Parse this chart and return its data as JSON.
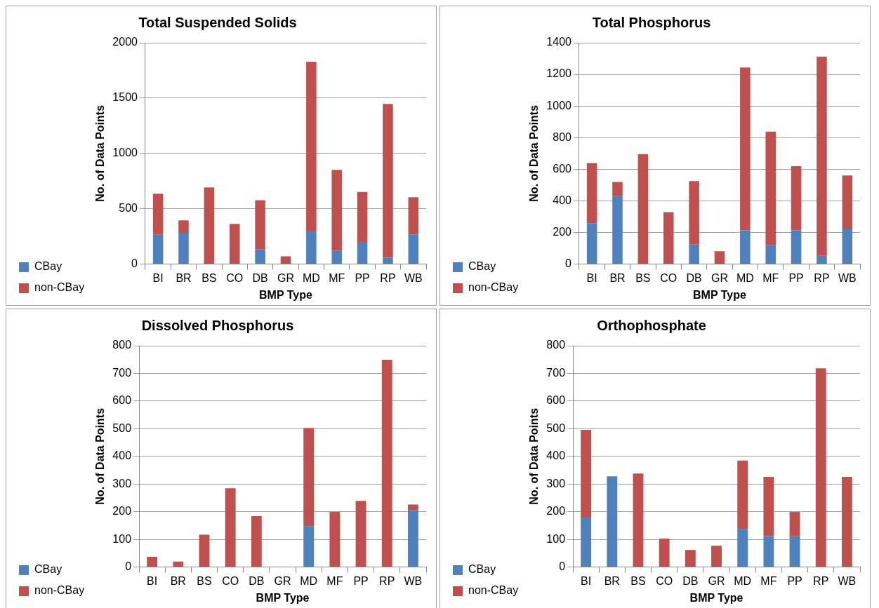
{
  "chart_data": [
    {
      "type": "bar",
      "stacked": true,
      "title": "Total Suspended Solids",
      "xlabel": "BMP Type",
      "ylabel": "No. of Data Points",
      "categories": [
        "BI",
        "BR",
        "BS",
        "CO",
        "DB",
        "GR",
        "MD",
        "MF",
        "PP",
        "RP",
        "WB"
      ],
      "ylim": [
        0,
        2000
      ],
      "yticks": [
        0,
        500,
        1000,
        1500,
        2000
      ],
      "grid": "y",
      "legend": "bottom left",
      "series": [
        {
          "name": "CBay",
          "color": "#4f81bd",
          "values": [
            265,
            283,
            0,
            0,
            135,
            0,
            296,
            119,
            200,
            57,
            268
          ]
        },
        {
          "name": "non-CBay",
          "color": "#c0504d",
          "values": [
            371,
            112,
            693,
            364,
            442,
            70,
            1533,
            733,
            452,
            1390,
            337
          ]
        }
      ]
    },
    {
      "type": "bar",
      "stacked": true,
      "title": "Total Phosphorus",
      "xlabel": "BMP Type",
      "ylabel": "No. of Data Points",
      "categories": [
        "BI",
        "BR",
        "BS",
        "CO",
        "DB",
        "GR",
        "MD",
        "MF",
        "PP",
        "RP",
        "WB"
      ],
      "ylim": [
        0,
        1400
      ],
      "yticks": [
        0,
        200,
        400,
        600,
        800,
        1000,
        1200,
        1400
      ],
      "grid": "y",
      "legend": "bottom left",
      "series": [
        {
          "name": "CBay",
          "color": "#4f81bd",
          "values": [
            259,
            430,
            0,
            0,
            123,
            0,
            213,
            119,
            213,
            53,
            224
          ]
        },
        {
          "name": "non-CBay",
          "color": "#c0504d",
          "values": [
            380,
            90,
            696,
            329,
            402,
            81,
            1031,
            719,
            406,
            1259,
            336
          ]
        }
      ]
    },
    {
      "type": "bar",
      "stacked": true,
      "title": "Dissolved Phosphorus",
      "xlabel": "BMP Type",
      "ylabel": "No. of Data Points",
      "categories": [
        "BI",
        "BR",
        "BS",
        "CO",
        "DB",
        "GR",
        "MD",
        "MF",
        "PP",
        "RP",
        "WB"
      ],
      "ylim": [
        0,
        800
      ],
      "yticks": [
        0,
        100,
        200,
        300,
        400,
        500,
        600,
        700,
        800
      ],
      "grid": "y",
      "legend": "bottom left",
      "series": [
        {
          "name": "CBay",
          "color": "#4f81bd",
          "values": [
            0,
            0,
            0,
            0,
            0,
            0,
            148,
            0,
            0,
            0,
            206
          ]
        },
        {
          "name": "non-CBay",
          "color": "#c0504d",
          "values": [
            37,
            20,
            117,
            285,
            184,
            0,
            355,
            199,
            239,
            749,
            20
          ]
        }
      ]
    },
    {
      "type": "bar",
      "stacked": true,
      "title": "Orthophosphate",
      "xlabel": "BMP Type",
      "ylabel": "No. of Data Points",
      "categories": [
        "BI",
        "BR",
        "BS",
        "CO",
        "DB",
        "GR",
        "MD",
        "MF",
        "PP",
        "RP",
        "WB"
      ],
      "ylim": [
        0,
        800
      ],
      "yticks": [
        0,
        100,
        200,
        300,
        400,
        500,
        600,
        700,
        800
      ],
      "grid": "y",
      "legend": "bottom left",
      "series": [
        {
          "name": "CBay",
          "color": "#4f81bd",
          "values": [
            179,
            328,
            0,
            0,
            0,
            0,
            138,
            112,
            111,
            0,
            0
          ]
        },
        {
          "name": "non-CBay",
          "color": "#c0504d",
          "values": [
            317,
            0,
            338,
            103,
            62,
            77,
            247,
            214,
            88,
            718,
            326
          ]
        }
      ]
    }
  ]
}
